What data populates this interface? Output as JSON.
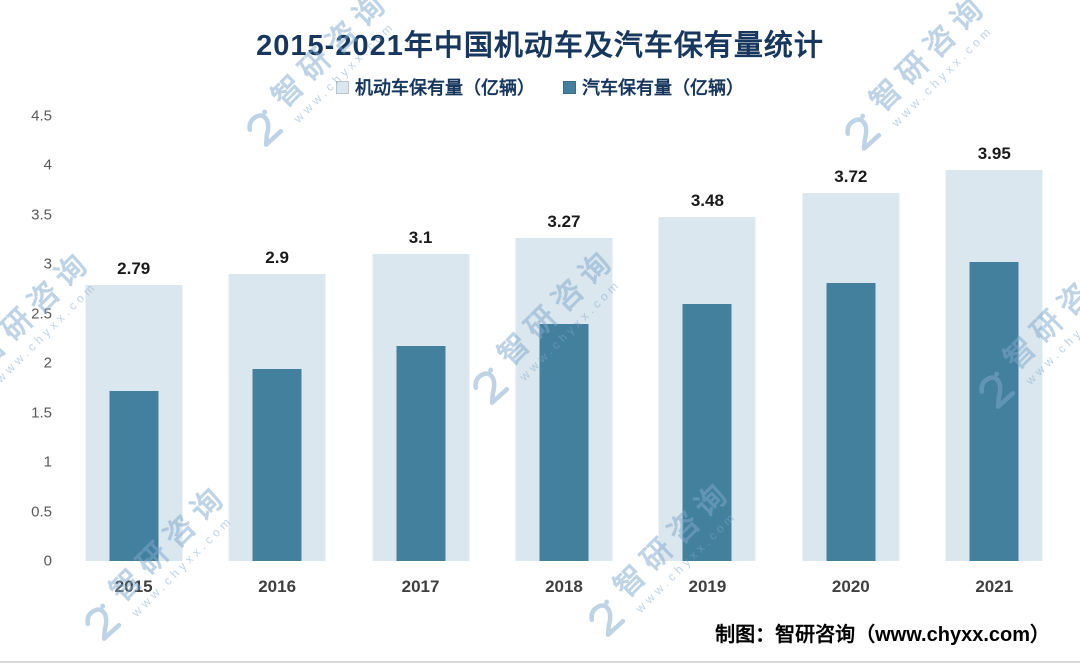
{
  "title": "2015-2021年中国机动车及汽车保有量统计",
  "footer": {
    "credit": "制图：智研咨询（www.chyxx.com）"
  },
  "watermark": {
    "brand": "智研咨询",
    "url": "www.chyxx.com"
  },
  "colors": {
    "title_text": "#17375e",
    "motor_vehicle_bar": "#dbe7ee",
    "automobile_bar": "#43809e",
    "axis_text": "#595959",
    "watermark": "#7fa8cc"
  },
  "chart_data": {
    "type": "bar",
    "bar_style": "overlapped",
    "categories": [
      "2015",
      "2016",
      "2017",
      "2018",
      "2019",
      "2020",
      "2021"
    ],
    "series": [
      {
        "name": "机动车保有量（亿辆）",
        "color": "#dbe7ee",
        "values": [
          2.79,
          2.9,
          3.1,
          3.27,
          3.48,
          3.72,
          3.95
        ],
        "labels": [
          "2.79",
          "2.9",
          "3.1",
          "3.27",
          "3.48",
          "3.72",
          "3.95"
        ],
        "labels_shown": true
      },
      {
        "name": "汽车保有量（亿辆）",
        "color": "#43809e",
        "values": [
          1.72,
          1.94,
          2.17,
          2.4,
          2.6,
          2.81,
          3.02
        ],
        "labels_shown": false
      }
    ],
    "ylim": [
      0,
      4.5
    ],
    "yticks": [
      0,
      0.5,
      1,
      1.5,
      2,
      2.5,
      3,
      3.5,
      4,
      4.5
    ],
    "grid": false,
    "legend_position": "top"
  }
}
